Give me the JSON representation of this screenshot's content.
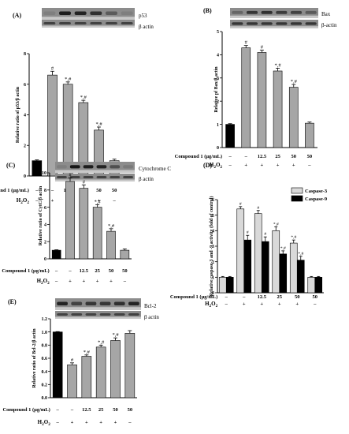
{
  "chart_data": [
    {
      "type": "bar",
      "panel_label": "(A)",
      "blot_label": "p53",
      "loading_label": "β actin",
      "ylabel": "Relative ratio of p53/β actin",
      "ylim": [
        0,
        8
      ],
      "yticks": [
        "0",
        "2",
        "4",
        "6",
        "8"
      ],
      "categories": [
        "1",
        "2",
        "3",
        "4",
        "5",
        "6"
      ],
      "values": [
        1.0,
        6.6,
        6.0,
        4.8,
        3.0,
        1.0
      ],
      "errors": [
        0.05,
        0.25,
        0.15,
        0.15,
        0.2,
        0.1
      ],
      "bar_colors": [
        "#000000",
        "#a6a6a6",
        "#a6a6a6",
        "#a6a6a6",
        "#a6a6a6",
        "#a6a6a6"
      ],
      "annotations": [
        "",
        "#",
        "*,#",
        "*,#",
        "*,#",
        ""
      ],
      "row1_label": "Compound 1 (μg/mL)",
      "row1": [
        "–",
        "–",
        "12.5",
        "25",
        "50",
        "50"
      ],
      "row2_label": "H2O2",
      "row2": [
        "–",
        "+",
        "+",
        "+",
        "+",
        "–"
      ]
    },
    {
      "type": "bar",
      "panel_label": "(B)",
      "blot_label": "Bax",
      "loading_label": "β-actin",
      "ylabel": "Relative pf Bax/β actin",
      "ylim": [
        0,
        5
      ],
      "yticks": [
        "0",
        "1",
        "2",
        "3",
        "4",
        "5"
      ],
      "categories": [
        "1",
        "2",
        "3",
        "4",
        "5",
        "6"
      ],
      "values": [
        1.0,
        4.3,
        4.1,
        3.3,
        2.6,
        1.05
      ],
      "errors": [
        0.03,
        0.1,
        0.1,
        0.12,
        0.12,
        0.05
      ],
      "bar_colors": [
        "#000000",
        "#a6a6a6",
        "#a6a6a6",
        "#a6a6a6",
        "#a6a6a6",
        "#a6a6a6"
      ],
      "annotations": [
        "",
        "#",
        "#",
        "*,#",
        "*,#",
        ""
      ],
      "row1_label": "Compound 1 (μg/mL)",
      "row1": [
        "–",
        "–",
        "12.5",
        "25",
        "50",
        "50"
      ],
      "row2_label": "H2O2",
      "row2": [
        "–",
        "+",
        "+",
        "+",
        "+",
        "–"
      ]
    },
    {
      "type": "bar",
      "panel_label": "(C)",
      "blot_label": "Cytochrome C",
      "loading_label": "β actin",
      "ylabel": "Relative ratio of CytC/β actin",
      "ylim": [
        0,
        10
      ],
      "yticks": [
        "0",
        "2",
        "4",
        "6",
        "8",
        "10"
      ],
      "categories": [
        "1",
        "2",
        "3",
        "4",
        "5",
        "6"
      ],
      "values": [
        1.0,
        9.0,
        8.2,
        6.0,
        3.2,
        1.0
      ],
      "errors": [
        0.05,
        0.4,
        0.4,
        0.3,
        0.3,
        0.15
      ],
      "bar_colors": [
        "#000000",
        "#a6a6a6",
        "#a6a6a6",
        "#a6a6a6",
        "#a6a6a6",
        "#a6a6a6"
      ],
      "annotations": [
        "",
        "#",
        "#",
        "*,#",
        "*,#",
        ""
      ],
      "row1_label": "Compound 1 (μg/mL)",
      "row1": [
        "–",
        "–",
        "12.5",
        "25",
        "50",
        "50"
      ],
      "row2_label": "H2O2",
      "row2": [
        "–",
        "+",
        "+",
        "+",
        "+",
        "–"
      ]
    },
    {
      "type": "bar",
      "panel_label": "(D)",
      "ylabel": "Relative caspase-3 and -9 activity (fold of control)",
      "ylim": [
        0,
        6
      ],
      "yticks": [
        "0",
        "1",
        "2",
        "3",
        "4",
        "5",
        "6"
      ],
      "categories": [
        "1",
        "2",
        "3",
        "4",
        "5",
        "6"
      ],
      "legend": "top-right",
      "series": [
        {
          "name": "Caspase-3",
          "color": "#d9d9d9",
          "values": [
            1.0,
            5.4,
            5.1,
            4.0,
            3.2,
            1.0
          ],
          "errors": [
            0.05,
            0.15,
            0.2,
            0.25,
            0.2,
            0.05
          ],
          "annotations": [
            "",
            "#",
            "#",
            "*,#",
            "*,#",
            ""
          ]
        },
        {
          "name": "Caspase-9",
          "color": "#000000",
          "values": [
            1.0,
            3.4,
            3.3,
            2.5,
            2.1,
            1.0
          ],
          "errors": [
            0.05,
            0.3,
            0.3,
            0.2,
            0.25,
            0.05
          ],
          "annotations": [
            "",
            "#",
            "#",
            "*,#",
            "*,#",
            ""
          ]
        }
      ],
      "row1_label": "Compound 1 (μg/mL)",
      "row1": [
        "–",
        "–",
        "12.5",
        "25",
        "50",
        "50"
      ],
      "row2_label": "H2O2",
      "row2": [
        "–",
        "+",
        "+",
        "+",
        "+",
        "–"
      ]
    },
    {
      "type": "bar",
      "panel_label": "(E)",
      "blot_label": "Bcl-2",
      "loading_label": "β actin",
      "ylabel": "Relative ratio of Bcl-2/β actin",
      "ylim": [
        0,
        1.2
      ],
      "yticks": [
        "0.0",
        "0.2",
        "0.4",
        "0.6",
        "0.8",
        "1.0",
        "1.2"
      ],
      "categories": [
        "1",
        "2",
        "3",
        "4",
        "5",
        "6"
      ],
      "values": [
        1.0,
        0.5,
        0.63,
        0.77,
        0.87,
        0.98
      ],
      "errors": [
        0.005,
        0.03,
        0.02,
        0.03,
        0.04,
        0.04
      ],
      "bar_colors": [
        "#000000",
        "#a6a6a6",
        "#a6a6a6",
        "#a6a6a6",
        "#a6a6a6",
        "#a6a6a6"
      ],
      "annotations": [
        "",
        "#",
        "*,#",
        "*,#",
        "*,#",
        ""
      ],
      "row1_label": "Compound 1 (μg/mL)",
      "row1": [
        "–",
        "–",
        "12.5",
        "25",
        "50",
        "50"
      ],
      "row2_label": "H2O2",
      "row2": [
        "–",
        "+",
        "+",
        "+",
        "+",
        "–"
      ]
    }
  ]
}
